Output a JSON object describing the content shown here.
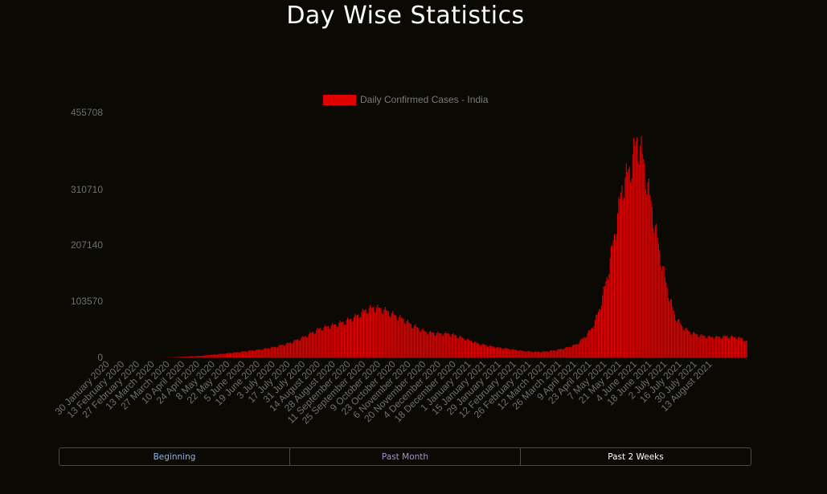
{
  "page": {
    "title": "Day Wise Statistics"
  },
  "range_buttons": [
    {
      "label": "Beginning",
      "color": "#8fb3e6"
    },
    {
      "label": "Past Month",
      "color": "#a493c6"
    },
    {
      "label": "Past 2 Weeks",
      "color": "#ffffff"
    }
  ],
  "chart_data": {
    "type": "bar",
    "title": "",
    "xlabel": "",
    "ylabel": "",
    "bar_color": "#e00000",
    "legend": {
      "label": "Daily Confirmed Cases - India",
      "position": "top-center"
    },
    "yticks": [
      0,
      103570,
      207140,
      310710,
      455708
    ],
    "ylim": [
      0,
      455708
    ],
    "x_tick_labels": [
      "30 January 2020",
      "13 February 2020",
      "27 February 2020",
      "13 March 2020",
      "27 March 2020",
      "10 April 2020",
      "24 April 2020",
      "8 May 2020",
      "22 May 2020",
      "5 June 2020",
      "19 June 2020",
      "3 July 2020",
      "17 July 2020",
      "31 July 2020",
      "14 August 2020",
      "28 August 2020",
      "11 September 2020",
      "25 September 2020",
      "9 October 2020",
      "23 October 2020",
      "6 November 2020",
      "20 November 2020",
      "4 December 2020",
      "18 December 2020",
      "1 January 2021",
      "15 January 2021",
      "29 January 2021",
      "12 February 2021",
      "26 February 2021",
      "12 March 2021",
      "26 March 2021",
      "9 April 2021",
      "23 April 2021",
      "7 May 2021",
      "21 May 2021",
      "4 June 2021",
      "18 June 2021",
      "2 July 2021",
      "16 July 2021",
      "30 July 2021",
      "13 August 2021"
    ],
    "series_start_date": "30 January 2020",
    "weekly_anchor_values": [
      [
        0,
        0
      ],
      [
        42,
        0
      ],
      [
        56,
        300
      ],
      [
        70,
        1500
      ],
      [
        84,
        3000
      ],
      [
        98,
        5500
      ],
      [
        112,
        8500
      ],
      [
        126,
        11500
      ],
      [
        140,
        15000
      ],
      [
        154,
        20000
      ],
      [
        168,
        28000
      ],
      [
        182,
        40000
      ],
      [
        189,
        48000
      ],
      [
        196,
        55000
      ],
      [
        210,
        62000
      ],
      [
        224,
        72000
      ],
      [
        231,
        80000
      ],
      [
        238,
        90000
      ],
      [
        245,
        94000
      ],
      [
        252,
        92000
      ],
      [
        259,
        86000
      ],
      [
        266,
        78000
      ],
      [
        273,
        72000
      ],
      [
        280,
        62000
      ],
      [
        287,
        55000
      ],
      [
        294,
        48000
      ],
      [
        301,
        46000
      ],
      [
        308,
        45000
      ],
      [
        315,
        45000
      ],
      [
        322,
        41000
      ],
      [
        329,
        36000
      ],
      [
        336,
        31000
      ],
      [
        343,
        26000
      ],
      [
        350,
        23000
      ],
      [
        357,
        20000
      ],
      [
        364,
        18000
      ],
      [
        371,
        16000
      ],
      [
        378,
        14000
      ],
      [
        385,
        12000
      ],
      [
        392,
        11000
      ],
      [
        399,
        10500
      ],
      [
        406,
        11500
      ],
      [
        413,
        13500
      ],
      [
        420,
        16000
      ],
      [
        427,
        20000
      ],
      [
        434,
        25000
      ],
      [
        441,
        38000
      ],
      [
        448,
        55000
      ],
      [
        455,
        90000
      ],
      [
        462,
        150000
      ],
      [
        469,
        230000
      ],
      [
        476,
        320000
      ],
      [
        483,
        355000
      ],
      [
        487,
        385000
      ],
      [
        490,
        410000
      ],
      [
        494,
        388000
      ],
      [
        497,
        360000
      ],
      [
        504,
        280000
      ],
      [
        511,
        200000
      ],
      [
        518,
        130000
      ],
      [
        525,
        80000
      ],
      [
        532,
        58000
      ],
      [
        539,
        48000
      ],
      [
        546,
        43000
      ],
      [
        553,
        40000
      ],
      [
        560,
        38000
      ],
      [
        567,
        39000
      ],
      [
        574,
        40000
      ],
      [
        581,
        38000
      ],
      [
        588,
        36000
      ],
      [
        592,
        30000
      ]
    ]
  }
}
